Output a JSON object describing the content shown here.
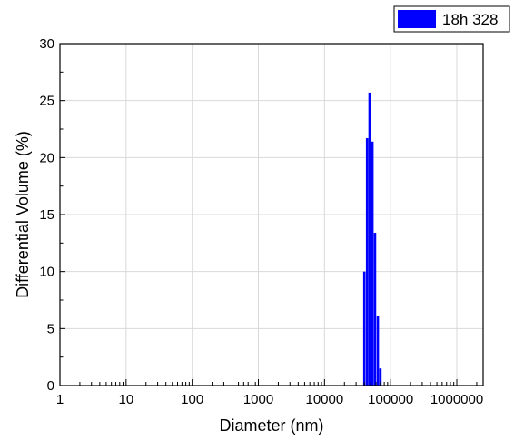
{
  "chart_data": {
    "type": "bar",
    "xlabel": "Diameter (nm)",
    "ylabel": "Differential Volume (%)",
    "x_scale": "log",
    "xlim": [
      1,
      2500000
    ],
    "ylim": [
      0,
      30
    ],
    "x_ticks": [
      "1",
      "10",
      "100",
      "1000",
      "10000",
      "100000",
      "1000000"
    ],
    "y_ticks": [
      "0",
      "5",
      "10",
      "15",
      "20",
      "25",
      "30"
    ],
    "grid": true,
    "legend_position": "top-right",
    "series": [
      {
        "name": "18h 328",
        "color": "#0000ff",
        "x": [
          40000,
          44000,
          48000,
          53000,
          58000,
          64000,
          70000
        ],
        "values": [
          10.0,
          21.7,
          25.7,
          21.4,
          13.4,
          6.1,
          1.5
        ]
      }
    ]
  }
}
